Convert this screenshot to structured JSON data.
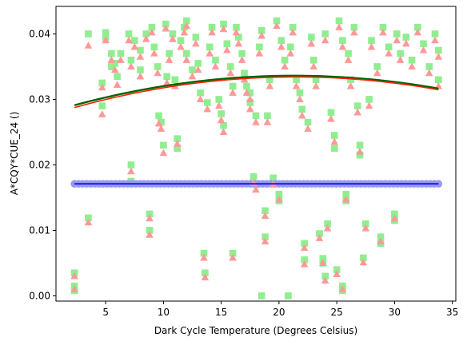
{
  "chart_data": {
    "type": "scatter",
    "title": "",
    "xlabel": "Dark Cycle Temperature (Degrees Celsius)",
    "ylabel": "A*CQY*CUE_24 ()",
    "xlim": [
      0.7,
      35.3
    ],
    "ylim": [
      -0.0008,
      0.0442
    ],
    "xticks": [
      5,
      10,
      15,
      20,
      25,
      30,
      35
    ],
    "yticks": [
      0.0,
      0.01,
      0.02,
      0.03,
      0.04
    ],
    "ytick_labels": [
      "0.00",
      "0.01",
      "0.02",
      "0.03",
      "0.04"
    ],
    "grid": false,
    "colors": {
      "squares": "#90ee90",
      "triangles": "#ff9999",
      "circles": "#9999ee",
      "fit_green": "#006400",
      "fit_red": "#ff2200",
      "fit_blue": "#0000ff"
    },
    "series": [
      {
        "marker": "square",
        "color": "#90ee90",
        "points": [
          [
            2.3,
            0.0035
          ],
          [
            2.3,
            0.0015
          ],
          [
            2.3,
            0.0008
          ],
          [
            3.5,
            0.0119
          ],
          [
            3.5,
            0.04
          ],
          [
            4.7,
            0.029
          ],
          [
            4.7,
            0.0325
          ],
          [
            5.0,
            0.0402
          ],
          [
            5.0,
            0.0395
          ],
          [
            5.5,
            0.037
          ],
          [
            5.5,
            0.035
          ],
          [
            5.8,
            0.0355
          ],
          [
            6.0,
            0.0335
          ],
          [
            6.3,
            0.037
          ],
          [
            7.0,
            0.04
          ],
          [
            7.2,
            0.036
          ],
          [
            7.2,
            0.02
          ],
          [
            7.2,
            0.0175
          ],
          [
            7.5,
            0.039
          ],
          [
            8.0,
            0.0375
          ],
          [
            8.0,
            0.0345
          ],
          [
            8.5,
            0.04
          ],
          [
            8.8,
            0.0125
          ],
          [
            8.8,
            0.01
          ],
          [
            9.0,
            0.041
          ],
          [
            9.2,
            0.038
          ],
          [
            9.5,
            0.035
          ],
          [
            9.6,
            0.0275
          ],
          [
            9.8,
            0.0265
          ],
          [
            10.0,
            0.023
          ],
          [
            10.2,
            0.0415
          ],
          [
            10.3,
            0.0335
          ],
          [
            10.5,
            0.037
          ],
          [
            10.8,
            0.04
          ],
          [
            11.0,
            0.033
          ],
          [
            11.2,
            0.024
          ],
          [
            11.2,
            0.0225
          ],
          [
            11.5,
            0.039
          ],
          [
            11.8,
            0.041
          ],
          [
            12.0,
            0.042
          ],
          [
            12.0,
            0.037
          ],
          [
            12.5,
            0.0345
          ],
          [
            12.8,
            0.0395
          ],
          [
            13.0,
            0.0355
          ],
          [
            13.2,
            0.031
          ],
          [
            13.5,
            0.0065
          ],
          [
            13.6,
            0.0035
          ],
          [
            13.8,
            0.0295
          ],
          [
            14.0,
            0.038
          ],
          [
            14.2,
            0.041
          ],
          [
            14.5,
            0.036
          ],
          [
            14.8,
            0.03
          ],
          [
            15.0,
            0.0278
          ],
          [
            15.2,
            0.026
          ],
          [
            15.2,
            0.0415
          ],
          [
            15.5,
            0.0385
          ],
          [
            15.8,
            0.035
          ],
          [
            16.0,
            0.032
          ],
          [
            16.0,
            0.0065
          ],
          [
            16.3,
            0.041
          ],
          [
            16.5,
            0.0395
          ],
          [
            16.8,
            0.037
          ],
          [
            17.0,
            0.034
          ],
          [
            17.2,
            0.032
          ],
          [
            17.5,
            0.031
          ],
          [
            17.5,
            0.0295
          ],
          [
            17.8,
            0.0182
          ],
          [
            18.0,
            0.0275
          ],
          [
            18.0,
            0.017
          ],
          [
            18.3,
            0.038
          ],
          [
            18.5,
            0.0
          ],
          [
            18.5,
            0.0405
          ],
          [
            18.8,
            0.013
          ],
          [
            18.8,
            0.009
          ],
          [
            19.0,
            0.0275
          ],
          [
            19.2,
            0.033
          ],
          [
            19.5,
            0.018
          ],
          [
            19.8,
            0.042
          ],
          [
            20.0,
            0.0155
          ],
          [
            20.0,
            0.0145
          ],
          [
            20.2,
            0.039
          ],
          [
            20.5,
            0.036
          ],
          [
            20.8,
            0.0
          ],
          [
            21.0,
            0.038
          ],
          [
            21.2,
            0.041
          ],
          [
            21.5,
            0.033
          ],
          [
            21.8,
            0.031
          ],
          [
            22.0,
            0.0285
          ],
          [
            22.2,
            0.008
          ],
          [
            22.2,
            0.0055
          ],
          [
            22.5,
            0.0265
          ],
          [
            22.8,
            0.0395
          ],
          [
            23.0,
            0.036
          ],
          [
            23.2,
            0.033
          ],
          [
            23.5,
            0.0095
          ],
          [
            23.8,
            0.0057
          ],
          [
            23.8,
            0.005
          ],
          [
            24.0,
            0.003
          ],
          [
            24.0,
            0.04
          ],
          [
            24.2,
            0.011
          ],
          [
            24.5,
            0.028
          ],
          [
            24.8,
            0.0245
          ],
          [
            24.8,
            0.0225
          ],
          [
            25.0,
            0.004
          ],
          [
            25.2,
            0.042
          ],
          [
            25.5,
            0.039
          ],
          [
            25.5,
            0.0015
          ],
          [
            25.5,
            0.0008
          ],
          [
            25.8,
            0.0155
          ],
          [
            25.8,
            0.0145
          ],
          [
            26.0,
            0.037
          ],
          [
            26.2,
            0.033
          ],
          [
            26.5,
            0.041
          ],
          [
            26.8,
            0.029
          ],
          [
            27.0,
            0.023
          ],
          [
            27.0,
            0.0215
          ],
          [
            27.3,
            0.0058
          ],
          [
            27.5,
            0.011
          ],
          [
            27.8,
            0.03
          ],
          [
            28.0,
            0.039
          ],
          [
            28.5,
            0.035
          ],
          [
            28.8,
            0.009
          ],
          [
            28.8,
            0.008
          ],
          [
            29.0,
            0.041
          ],
          [
            29.5,
            0.038
          ],
          [
            30.0,
            0.0125
          ],
          [
            30.0,
            0.0115
          ],
          [
            30.2,
            0.04
          ],
          [
            30.5,
            0.037
          ],
          [
            31.0,
            0.0395
          ],
          [
            31.5,
            0.036
          ],
          [
            32.0,
            0.041
          ],
          [
            32.5,
            0.0385
          ],
          [
            33.0,
            0.035
          ],
          [
            33.5,
            0.04
          ],
          [
            33.8,
            0.0375
          ],
          [
            33.8,
            0.033
          ]
        ]
      },
      {
        "marker": "triangle",
        "color": "#ff9999",
        "points": [
          [
            2.3,
            0.003
          ],
          [
            2.3,
            0.001
          ],
          [
            3.5,
            0.0112
          ],
          [
            3.5,
            0.0382
          ],
          [
            4.7,
            0.0277
          ],
          [
            4.7,
            0.0318
          ],
          [
            5.0,
            0.039
          ],
          [
            5.5,
            0.036
          ],
          [
            5.8,
            0.0345
          ],
          [
            6.0,
            0.0322
          ],
          [
            6.3,
            0.036
          ],
          [
            7.0,
            0.039
          ],
          [
            7.2,
            0.035
          ],
          [
            7.2,
            0.019
          ],
          [
            7.5,
            0.038
          ],
          [
            8.0,
            0.0365
          ],
          [
            8.0,
            0.0335
          ],
          [
            8.5,
            0.0392
          ],
          [
            8.8,
            0.0118
          ],
          [
            8.8,
            0.0093
          ],
          [
            9.0,
            0.0402
          ],
          [
            9.2,
            0.037
          ],
          [
            9.5,
            0.034
          ],
          [
            9.6,
            0.0263
          ],
          [
            9.8,
            0.0255
          ],
          [
            10.0,
            0.0218
          ],
          [
            10.2,
            0.0408
          ],
          [
            10.3,
            0.0325
          ],
          [
            10.5,
            0.036
          ],
          [
            10.8,
            0.0392
          ],
          [
            11.0,
            0.032
          ],
          [
            11.2,
            0.0232
          ],
          [
            11.5,
            0.038
          ],
          [
            11.8,
            0.0402
          ],
          [
            12.0,
            0.0412
          ],
          [
            12.0,
            0.036
          ],
          [
            12.5,
            0.0335
          ],
          [
            12.8,
            0.0385
          ],
          [
            13.0,
            0.0345
          ],
          [
            13.2,
            0.03
          ],
          [
            13.5,
            0.0058
          ],
          [
            13.6,
            0.0028
          ],
          [
            13.8,
            0.0285
          ],
          [
            14.0,
            0.037
          ],
          [
            14.2,
            0.0402
          ],
          [
            14.5,
            0.035
          ],
          [
            14.8,
            0.029
          ],
          [
            15.0,
            0.0268
          ],
          [
            15.2,
            0.025
          ],
          [
            15.2,
            0.0407
          ],
          [
            15.5,
            0.0375
          ],
          [
            15.8,
            0.034
          ],
          [
            16.0,
            0.031
          ],
          [
            16.0,
            0.0058
          ],
          [
            16.3,
            0.0402
          ],
          [
            16.5,
            0.0385
          ],
          [
            16.8,
            0.036
          ],
          [
            17.0,
            0.033
          ],
          [
            17.2,
            0.031
          ],
          [
            17.5,
            0.03
          ],
          [
            17.5,
            0.0285
          ],
          [
            17.8,
            0.0172
          ],
          [
            18.0,
            0.0265
          ],
          [
            18.0,
            0.0162
          ],
          [
            18.3,
            0.037
          ],
          [
            18.5,
            0.0397
          ],
          [
            18.8,
            0.0122
          ],
          [
            18.8,
            0.0083
          ],
          [
            19.0,
            0.0265
          ],
          [
            19.2,
            0.032
          ],
          [
            19.5,
            0.017
          ],
          [
            19.8,
            0.0412
          ],
          [
            20.0,
            0.0147
          ],
          [
            20.2,
            0.038
          ],
          [
            20.5,
            0.035
          ],
          [
            21.0,
            0.037
          ],
          [
            21.2,
            0.0402
          ],
          [
            21.5,
            0.032
          ],
          [
            21.8,
            0.03
          ],
          [
            22.0,
            0.0275
          ],
          [
            22.2,
            0.0073
          ],
          [
            22.2,
            0.0048
          ],
          [
            22.5,
            0.0255
          ],
          [
            22.8,
            0.0385
          ],
          [
            23.0,
            0.035
          ],
          [
            23.2,
            0.032
          ],
          [
            23.5,
            0.0088
          ],
          [
            23.8,
            0.005
          ],
          [
            24.0,
            0.0023
          ],
          [
            24.0,
            0.039
          ],
          [
            24.2,
            0.0103
          ],
          [
            24.5,
            0.027
          ],
          [
            24.8,
            0.0235
          ],
          [
            25.0,
            0.0033
          ],
          [
            25.2,
            0.041
          ],
          [
            25.5,
            0.038
          ],
          [
            25.5,
            0.001
          ],
          [
            25.8,
            0.0147
          ],
          [
            26.0,
            0.036
          ],
          [
            26.2,
            0.032
          ],
          [
            26.5,
            0.0402
          ],
          [
            26.8,
            0.028
          ],
          [
            27.0,
            0.022
          ],
          [
            27.3,
            0.0051
          ],
          [
            27.5,
            0.0103
          ],
          [
            27.8,
            0.029
          ],
          [
            28.0,
            0.038
          ],
          [
            28.5,
            0.034
          ],
          [
            28.8,
            0.0083
          ],
          [
            29.0,
            0.0402
          ],
          [
            29.5,
            0.037
          ],
          [
            30.0,
            0.0118
          ],
          [
            30.2,
            0.039
          ],
          [
            30.5,
            0.036
          ],
          [
            31.0,
            0.0385
          ],
          [
            31.5,
            0.035
          ],
          [
            32.0,
            0.0402
          ],
          [
            32.5,
            0.0375
          ],
          [
            33.0,
            0.034
          ],
          [
            33.5,
            0.039
          ],
          [
            33.8,
            0.0365
          ],
          [
            33.8,
            0.032
          ]
        ]
      },
      {
        "marker": "circle",
        "color": "#9999ee",
        "constant_y": 0.0171,
        "x_range": [
          2.3,
          33.8
        ],
        "count": 90
      }
    ],
    "fit_lines": [
      {
        "color": "#006400",
        "width": 2.4,
        "a": -1.25e-05,
        "b": 0.000532,
        "c": 0.02795
      },
      {
        "color": "#ff2200",
        "width": 1.6,
        "a": -1.28e-05,
        "b": 0.000548,
        "c": 0.02756
      },
      {
        "color": "#0000ff",
        "width": 1.6,
        "a": 0,
        "b": 0,
        "c": 0.0171
      }
    ]
  }
}
